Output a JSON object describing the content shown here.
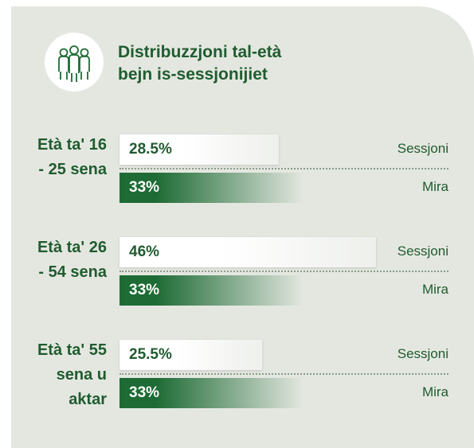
{
  "chart_data": {
    "type": "bar",
    "orientation": "horizontal",
    "title": "Distribuzzjoni tal-età bejn is-sessjonijiet",
    "categories": [
      "Età ta' 16 - 25 sena",
      "Età ta' 26 - 54 sena",
      "Età ta' 55 sena u aktar"
    ],
    "series": [
      {
        "name": "Sessjoni",
        "color": "#ffffff",
        "values": [
          28.5,
          46,
          25.5
        ],
        "value_labels": [
          "28.5%",
          "46%",
          "25.5%"
        ]
      },
      {
        "name": "Mira",
        "color": "#1e6b35",
        "values": [
          33,
          33,
          33
        ],
        "value_labels": [
          "33%",
          "33%",
          "33%"
        ]
      }
    ]
  }
}
